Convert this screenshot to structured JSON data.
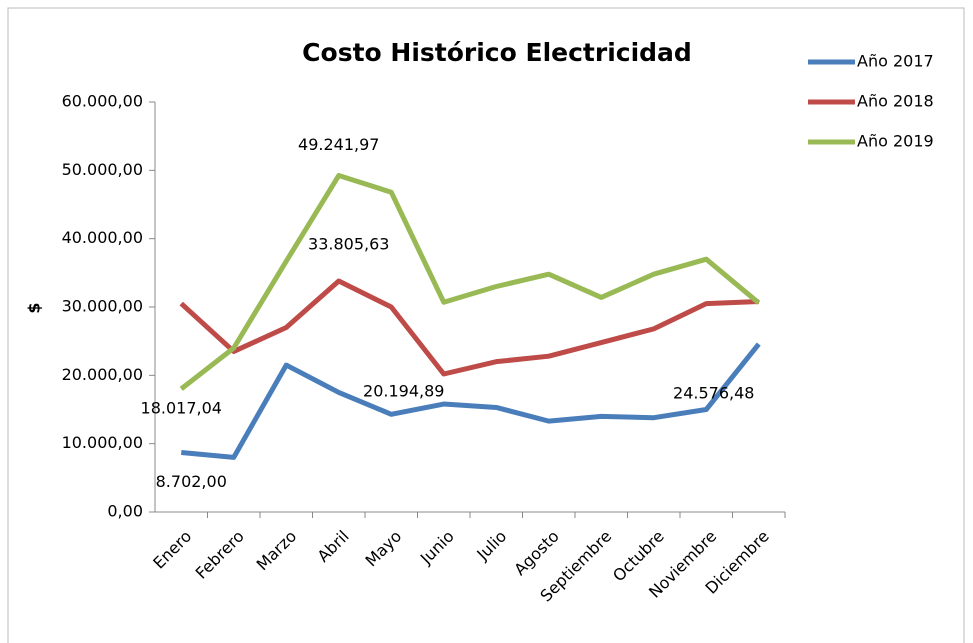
{
  "chart_data": {
    "type": "line",
    "title": "Costo Histórico Electricidad",
    "y_label": "$",
    "categories": [
      "Enero",
      "Febrero",
      "Marzo",
      "Abril",
      "Mayo",
      "Junio",
      "Julio",
      "Agosto",
      "Septiembre",
      "Octubre",
      "Noviembre",
      "Diciembre"
    ],
    "series": [
      {
        "name": "Año 2017",
        "color": "#4a7ebb",
        "values": [
          8702,
          8000,
          21500,
          17500,
          14300,
          15800,
          15300,
          13300,
          14000,
          13800,
          15000,
          24576.48
        ],
        "value_labels": [
          "8.702,00",
          null,
          null,
          null,
          null,
          null,
          null,
          null,
          null,
          null,
          null,
          "24.576,48"
        ]
      },
      {
        "name": "Año 2018",
        "color": "#be4b48",
        "values": [
          30500,
          23500,
          27000,
          33805.63,
          30000,
          20194.89,
          22000,
          22800,
          24800,
          26800,
          30500,
          30800
        ],
        "value_labels": [
          null,
          null,
          null,
          "33.805,63",
          null,
          "20.194,89",
          null,
          null,
          null,
          null,
          null,
          null
        ]
      },
      {
        "name": "Año 2019",
        "color": "#98b954",
        "values": [
          18017.04,
          24000,
          36700,
          49241.97,
          46800,
          30700,
          33000,
          34800,
          31400,
          34800,
          37000,
          30600
        ],
        "value_labels": [
          "18.017,04",
          null,
          null,
          "49.241,97",
          null,
          null,
          null,
          null,
          null,
          null,
          null,
          null
        ]
      }
    ],
    "ylim": [
      0,
      60000
    ],
    "yticks": [
      {
        "value": 0,
        "label": "0,00"
      },
      {
        "value": 10000,
        "label": "10.000,00"
      },
      {
        "value": 20000,
        "label": "20.000,00"
      },
      {
        "value": 30000,
        "label": "30.000,00"
      },
      {
        "value": 40000,
        "label": "40.000,00"
      },
      {
        "value": 50000,
        "label": "50.000,00"
      },
      {
        "value": 60000,
        "label": "60.000,00"
      }
    ],
    "legend": "top-right"
  }
}
